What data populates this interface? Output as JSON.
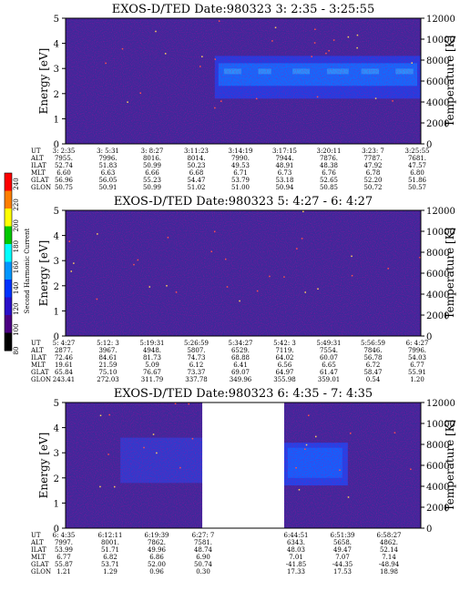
{
  "colorbar": {
    "label": "Second Harmonic Current",
    "ticks": [
      "240",
      "220",
      "200",
      "180",
      "160",
      "140",
      "120",
      "100",
      "80"
    ],
    "colors": [
      "#ff0000",
      "#ff7f00",
      "#ffff00",
      "#00c800",
      "#00ffff",
      "#0096ff",
      "#0032ff",
      "#2a0fc8",
      "#4b0082",
      "#000000"
    ]
  },
  "chart_data": [
    {
      "type": "heatmap",
      "title": "EXOS-D/TED   Date:980323   3: 2:35 - 3:25:55",
      "ylabel": "Energy [eV]",
      "y2label": "Temperature [K]",
      "ylim": [
        0,
        5
      ],
      "y2lim": [
        0,
        12000
      ],
      "yticks": [
        "0",
        "1",
        "2",
        "3",
        "4",
        "5"
      ],
      "y2ticks": [
        "0",
        "2000",
        "4000",
        "6000",
        "8000",
        "10000",
        "12000"
      ],
      "blue_band": {
        "x_start_fraction": 0.42,
        "x_end_fraction": 1.0,
        "energy_range": [
          1.8,
          3.5
        ]
      },
      "table": {
        "labels": [
          "UT",
          "ALT",
          "ILAT",
          "MLT",
          "GLAT",
          "GLON"
        ],
        "columns": [
          [
            "3: 2:35",
            "7955.",
            "52.74",
            "6.60",
            "56.96",
            "50.75"
          ],
          [
            "3: 5:31",
            "7996.",
            "51.83",
            "6.63",
            "56.05",
            "50.91"
          ],
          [
            "3: 8:27",
            "8016.",
            "50.99",
            "6.66",
            "55.23",
            "50.99"
          ],
          [
            "3:11:23",
            "8014.",
            "50.23",
            "6.68",
            "54.47",
            "51.02"
          ],
          [
            "3:14:19",
            "7990.",
            "49.53",
            "6.71",
            "53.79",
            "51.00"
          ],
          [
            "3:17:15",
            "7944.",
            "48.91",
            "6.73",
            "53.18",
            "50.94"
          ],
          [
            "3:20:11",
            "7876.",
            "48.38",
            "6.76",
            "52.65",
            "50.85"
          ],
          [
            "3:23: 7",
            "7787.",
            "47.92",
            "6.78",
            "52.20",
            "50.72"
          ],
          [
            "3:25:55",
            "7681.",
            "47.57",
            "6.80",
            "51.86",
            "50.57"
          ]
        ]
      }
    },
    {
      "type": "heatmap",
      "title": "EXOS-D/TED   Date:980323   5: 4:27 - 6: 4:27",
      "ylabel": "Energy [eV]",
      "y2label": "Temperature [K]",
      "ylim": [
        0,
        5
      ],
      "y2lim": [
        0,
        12000
      ],
      "yticks": [
        "0",
        "1",
        "2",
        "3",
        "4",
        "5"
      ],
      "y2ticks": [
        "0",
        "2000",
        "4000",
        "6000",
        "8000",
        "10000",
        "12000"
      ],
      "table": {
        "labels": [
          "UT",
          "ALT",
          "ILAT",
          "MLT",
          "GLAT",
          "GLON"
        ],
        "columns": [
          [
            "5: 4:27",
            "2877.",
            "72.46",
            "19.61",
            "65.84",
            "243.41"
          ],
          [
            "5:12: 3",
            "3967.",
            "84.61",
            "21.59",
            "75.10",
            "272.03"
          ],
          [
            "5:19:31",
            "4948.",
            "81.73",
            "5.09",
            "76.67",
            "311.79"
          ],
          [
            "5:26:59",
            "5807.",
            "74.73",
            "6.12",
            "73.37",
            "337.78"
          ],
          [
            "5:34:27",
            "6529.",
            "68.88",
            "6.41",
            "69.07",
            "349.96"
          ],
          [
            "5:42: 3",
            "7119.",
            "64.02",
            "6.56",
            "64.97",
            "355.98"
          ],
          [
            "5:49:31",
            "7554.",
            "60.07",
            "6.65",
            "61.47",
            "359.01"
          ],
          [
            "5:56:59",
            "7846.",
            "56.78",
            "6.72",
            "58.47",
            "0.54"
          ],
          [
            "6: 4:27",
            "7996.",
            "54.03",
            "6.77",
            "55.91",
            "1.20"
          ]
        ]
      }
    },
    {
      "type": "heatmap",
      "title": "EXOS-D/TED   Date:980323   6: 4:35 - 7: 4:35",
      "ylabel": "Energy [eV]",
      "y2label": "Temperature [K]",
      "ylim": [
        0,
        5
      ],
      "y2lim": [
        0,
        12000
      ],
      "yticks": [
        "0",
        "1",
        "2",
        "3",
        "4",
        "5"
      ],
      "y2ticks": [
        "0",
        "2000",
        "4000",
        "6000",
        "8000",
        "10000",
        "12000"
      ],
      "data_gap": {
        "x_start_fraction": 0.385,
        "x_end_fraction": 0.615
      },
      "table": {
        "labels": [
          "UT",
          "ALT",
          "ILAT",
          "MLT",
          "GLAT",
          "GLON"
        ],
        "columns": [
          [
            "6: 4:35",
            "7997.",
            "53.99",
            "6.77",
            "55.87",
            "1.21"
          ],
          [
            "6:12:11",
            "8001.",
            "51.71",
            "6.82",
            "53.71",
            "1.29"
          ],
          [
            "6:19:39",
            "7862.",
            "49.96",
            "6.86",
            "52.00",
            "0.96"
          ],
          [
            "6:27: 7",
            "7581.",
            "48.74",
            "6.90",
            "50.74",
            "0.30"
          ],
          [
            "",
            "",
            "",
            "",
            "",
            ""
          ],
          [
            "6:44:51",
            "6343.",
            "48.03",
            "7.01",
            "-41.85",
            "17.33"
          ],
          [
            "6:51:39",
            "5658.",
            "49.47",
            "7.07",
            "-44.35",
            "17.53"
          ],
          [
            "6:58:27",
            "4862.",
            "52.14",
            "7.14",
            "-48.94",
            "18.98"
          ]
        ]
      }
    }
  ]
}
